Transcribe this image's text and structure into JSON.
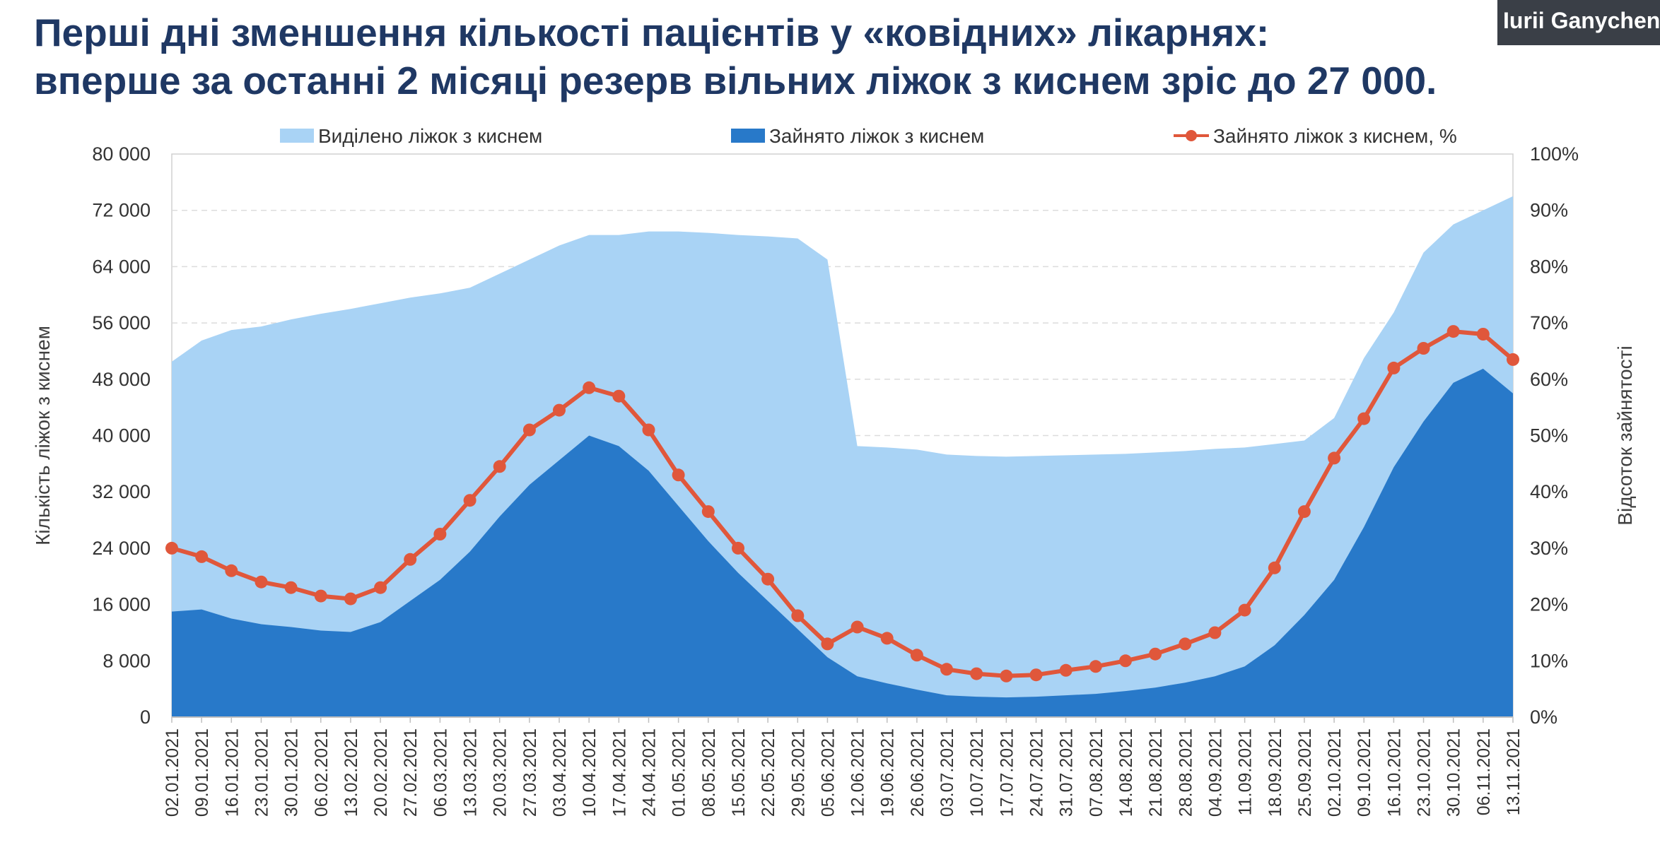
{
  "title": {
    "line1": "Перші дні зменшення кількості пацієнтів у «ковідних» лікарнях:",
    "line2": "вперше за останні 2 місяці резерв вільних ліжок з киснем зріс до 27 000."
  },
  "webcam_label": "Iurii Ganychen",
  "colors": {
    "allocated": "#a9d3f5",
    "occupied": "#2879c9",
    "percent": "#e0573b",
    "title": "#1f3864"
  },
  "chart_data": {
    "type": "area",
    "title": "",
    "ylabel": "Кількість ліжок з киснем",
    "y2label": "Відсоток зайнятості",
    "ylim": [
      0,
      80000
    ],
    "y2lim": [
      0,
      1
    ],
    "yticks": [
      "0",
      "8 000",
      "16 000",
      "24 000",
      "32 000",
      "40 000",
      "48 000",
      "56 000",
      "64 000",
      "72 000",
      "80 000"
    ],
    "y2ticks": [
      "0%",
      "10%",
      "20%",
      "30%",
      "40%",
      "50%",
      "60%",
      "70%",
      "80%",
      "90%",
      "100%"
    ],
    "legend": [
      "Виділено ліжок з киснем",
      "Зайнято ліжок з киснем",
      "Зайнято ліжок з киснем, %"
    ],
    "legend_position": "top",
    "grid": true,
    "x": [
      "02.01.2021",
      "09.01.2021",
      "16.01.2021",
      "23.01.2021",
      "30.01.2021",
      "06.02.2021",
      "13.02.2021",
      "20.02.2021",
      "27.02.2021",
      "06.03.2021",
      "13.03.2021",
      "20.03.2021",
      "27.03.2021",
      "03.04.2021",
      "10.04.2021",
      "17.04.2021",
      "24.04.2021",
      "01.05.2021",
      "08.05.2021",
      "15.05.2021",
      "22.05.2021",
      "29.05.2021",
      "05.06.2021",
      "12.06.2021",
      "19.06.2021",
      "26.06.2021",
      "03.07.2021",
      "10.07.2021",
      "17.07.2021",
      "24.07.2021",
      "31.07.2021",
      "07.08.2021",
      "14.08.2021",
      "21.08.2021",
      "28.08.2021",
      "04.09.2021",
      "11.09.2021",
      "18.09.2021",
      "25.09.2021",
      "02.10.2021",
      "09.10.2021",
      "16.10.2021",
      "23.10.2021",
      "30.10.2021",
      "06.11.2021",
      "13.11.2021"
    ],
    "series": [
      {
        "name": "Виділено ліжок з киснем",
        "type": "area",
        "values": [
          50500,
          53500,
          55000,
          55500,
          56500,
          57300,
          58000,
          58800,
          59600,
          60200,
          61000,
          63000,
          65000,
          67000,
          68500,
          68500,
          69000,
          69000,
          68800,
          68500,
          68300,
          68000,
          65000,
          38500,
          38300,
          38000,
          37300,
          37100,
          37000,
          37100,
          37200,
          37300,
          37400,
          37600,
          37800,
          38100,
          38300,
          38800,
          39300,
          42500,
          51000,
          57500,
          66000,
          70000,
          72000,
          74000
        ]
      },
      {
        "name": "Зайнято ліжок з киснем",
        "type": "area",
        "values": [
          15000,
          15300,
          14000,
          13200,
          12800,
          12300,
          12100,
          13500,
          16500,
          19500,
          23500,
          28500,
          33000,
          36500,
          40000,
          38500,
          35000,
          30000,
          25000,
          20500,
          16500,
          12500,
          8500,
          5800,
          4800,
          3900,
          3100,
          2900,
          2800,
          2900,
          3100,
          3300,
          3700,
          4200,
          4900,
          5800,
          7200,
          10200,
          14500,
          19500,
          27000,
          35500,
          42000,
          47500,
          49500,
          46000
        ]
      },
      {
        "name": "Зайнято ліжок з киснем, %",
        "type": "line",
        "axis": "right",
        "values": [
          0.3,
          0.285,
          0.26,
          0.24,
          0.23,
          0.215,
          0.21,
          0.23,
          0.28,
          0.325,
          0.385,
          0.445,
          0.51,
          0.545,
          0.585,
          0.57,
          0.51,
          0.43,
          0.365,
          0.3,
          0.245,
          0.18,
          0.13,
          0.16,
          0.14,
          0.11,
          0.085,
          0.077,
          0.073,
          0.075,
          0.083,
          0.09,
          0.1,
          0.112,
          0.13,
          0.15,
          0.19,
          0.265,
          0.365,
          0.46,
          0.53,
          0.62,
          0.655,
          0.685,
          0.68,
          0.635
        ]
      }
    ]
  }
}
